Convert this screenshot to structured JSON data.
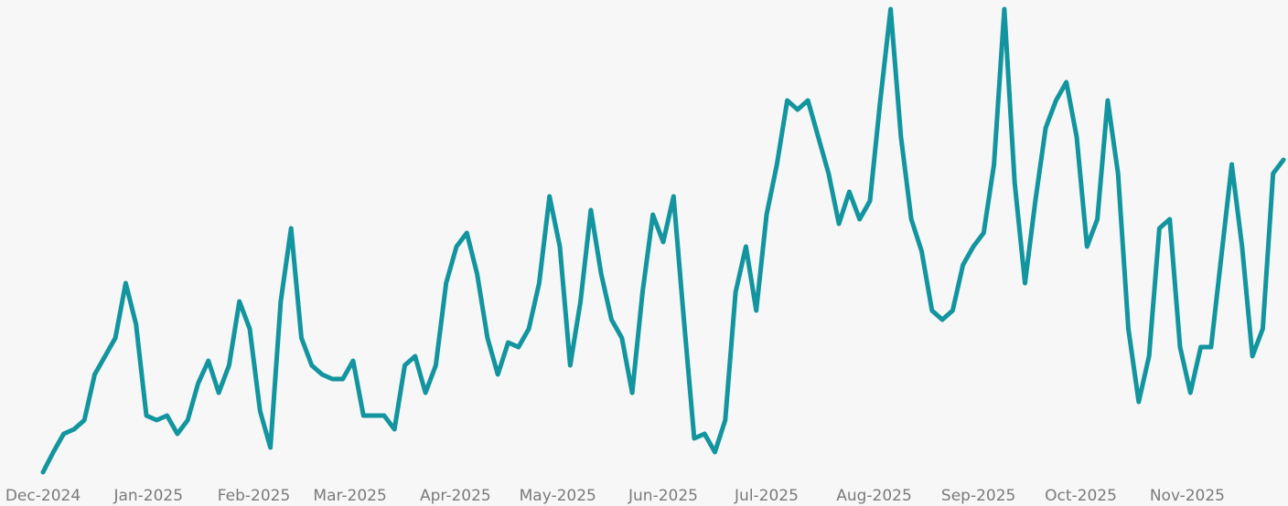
{
  "chart_data": {
    "type": "line",
    "color": "#12959f",
    "values": [
      0.6,
      5,
      9,
      10,
      12,
      22,
      26,
      30,
      42,
      33,
      13,
      12,
      13,
      9,
      12,
      20,
      25,
      18,
      24,
      38,
      32,
      14,
      6,
      38,
      54,
      30,
      24,
      22,
      21,
      21,
      25,
      13,
      13,
      13,
      10,
      24,
      26,
      18,
      24,
      42,
      50,
      53,
      44,
      30,
      22,
      29,
      28,
      32,
      42,
      61,
      50,
      24,
      38,
      58,
      44,
      34,
      30,
      18,
      40,
      57,
      51,
      61,
      34,
      8,
      9,
      5,
      12,
      40,
      50,
      36,
      57,
      68,
      82,
      80,
      82,
      74,
      66,
      55,
      62,
      56,
      60,
      82,
      102,
      74,
      56,
      49,
      36,
      34,
      36,
      46,
      50,
      53,
      68,
      102,
      64,
      42,
      60,
      76,
      82,
      86,
      74,
      50,
      56,
      82,
      66,
      32,
      16,
      26,
      54,
      56,
      28,
      18,
      28,
      28,
      48,
      68,
      50,
      26,
      32,
      66,
      69
    ],
    "xlim": [
      0,
      120
    ],
    "ylim": [
      0,
      104
    ],
    "xticks": [
      {
        "value": 0,
        "label": "Dec-2024"
      },
      {
        "value": 10.2,
        "label": "Jan-2025"
      },
      {
        "value": 20.4,
        "label": "Feb-2025"
      },
      {
        "value": 29.7,
        "label": "Mar-2025"
      },
      {
        "value": 39.9,
        "label": "Apr-2025"
      },
      {
        "value": 49.8,
        "label": "May-2025"
      },
      {
        "value": 60,
        "label": "Jun-2025"
      },
      {
        "value": 70,
        "label": "Jul-2025"
      },
      {
        "value": 80.4,
        "label": "Aug-2025"
      },
      {
        "value": 90.5,
        "label": "Sep-2025"
      },
      {
        "value": 100.4,
        "label": "Oct-2025"
      },
      {
        "value": 110.7,
        "label": "Nov-2025"
      }
    ]
  }
}
